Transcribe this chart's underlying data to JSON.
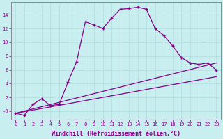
{
  "xlabel": "Windchill (Refroidissement éolien,°C)",
  "bg_color": "#c8eef0",
  "line_color": "#880088",
  "grid_color": "#b0dde0",
  "axis_color": "#888899",
  "x_ticks": [
    0,
    1,
    2,
    3,
    4,
    5,
    6,
    7,
    8,
    9,
    10,
    11,
    12,
    13,
    14,
    15,
    16,
    17,
    18,
    19,
    20,
    21,
    22,
    23
  ],
  "y_ticks": [
    0,
    2,
    4,
    6,
    8,
    10,
    12,
    14
  ],
  "y_tick_labels": [
    "-0",
    "2",
    "4",
    "6",
    "8",
    "10",
    "12",
    "14"
  ],
  "ylim": [
    -1.2,
    15.8
  ],
  "xlim": [
    -0.5,
    23.5
  ],
  "line1_x": [
    0,
    1,
    2,
    3,
    4,
    5,
    6,
    7,
    8,
    9,
    10,
    11,
    12,
    13,
    14,
    15,
    16,
    17,
    18,
    19,
    20,
    21,
    22,
    23
  ],
  "line1_y": [
    -0.3,
    -0.6,
    1.0,
    1.8,
    0.8,
    1.0,
    4.2,
    7.2,
    13.0,
    12.5,
    12.0,
    13.5,
    14.8,
    14.9,
    15.1,
    14.8,
    12.0,
    11.0,
    9.5,
    7.8,
    7.0,
    6.8,
    7.0,
    6.0
  ],
  "line2_x": [
    0,
    23
  ],
  "line2_y": [
    -0.3,
    7.0
  ],
  "line3_x": [
    0,
    23
  ],
  "line3_y": [
    -0.3,
    5.0
  ],
  "marker": "+",
  "markersize": 3.5,
  "linewidth": 0.9,
  "tick_fontsize": 5.0,
  "label_fontsize": 6.0
}
